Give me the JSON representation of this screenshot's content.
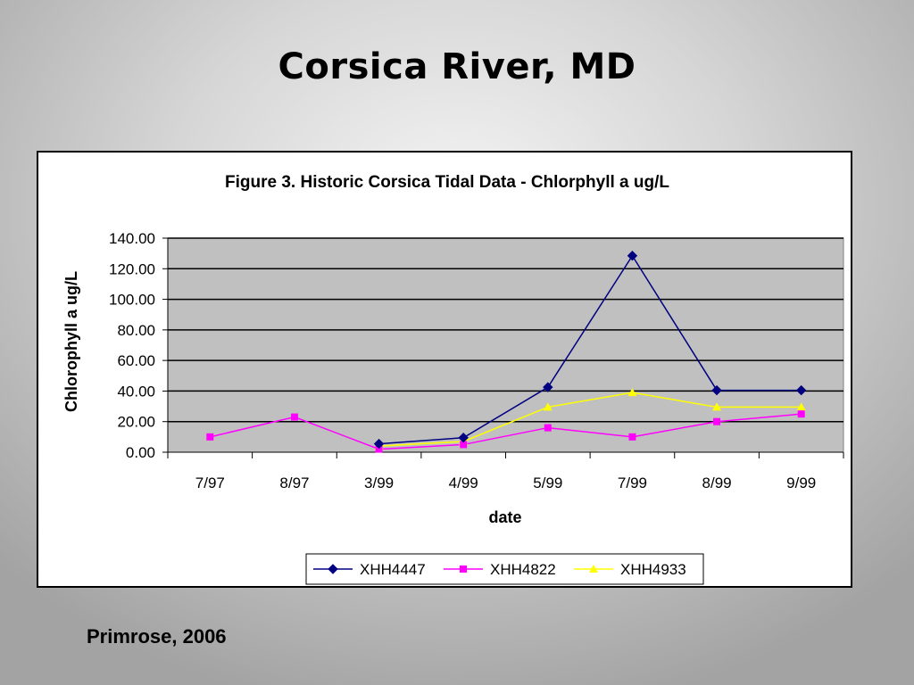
{
  "slide": {
    "title": "Corsica River, MD",
    "caption": "Primrose, 2006"
  },
  "colors": {
    "plot_background": "#c0c0c0",
    "XHH4447": "#000080",
    "XHH4822": "#ff00ff",
    "XHH4933": "#ffff00"
  },
  "chart_data": {
    "type": "line",
    "title": "Figure 3. Historic Corsica Tidal Data - Chlorphyll a ug/L",
    "xlabel": "date",
    "ylabel": "Chlorophyll a ug/L",
    "categories": [
      "7/97",
      "8/97",
      "3/99",
      "4/99",
      "5/99",
      "7/99",
      "8/99",
      "9/99"
    ],
    "ylim": [
      0,
      140
    ],
    "yticks": [
      "0.00",
      "20.00",
      "40.00",
      "60.00",
      "80.00",
      "100.00",
      "120.00",
      "140.00"
    ],
    "grid": "horizontal",
    "legend": "bottom",
    "series": [
      {
        "name": "XHH4447",
        "marker": "diamond",
        "values": [
          null,
          null,
          5.5,
          9.5,
          42.5,
          128.5,
          40.5,
          40.5
        ]
      },
      {
        "name": "XHH4822",
        "marker": "square",
        "values": [
          10,
          23,
          2,
          5,
          16,
          10,
          20,
          25
        ]
      },
      {
        "name": "XHH4933",
        "marker": "triangle",
        "values": [
          null,
          null,
          4,
          7,
          29.5,
          39,
          29.5,
          29.5
        ]
      }
    ]
  }
}
